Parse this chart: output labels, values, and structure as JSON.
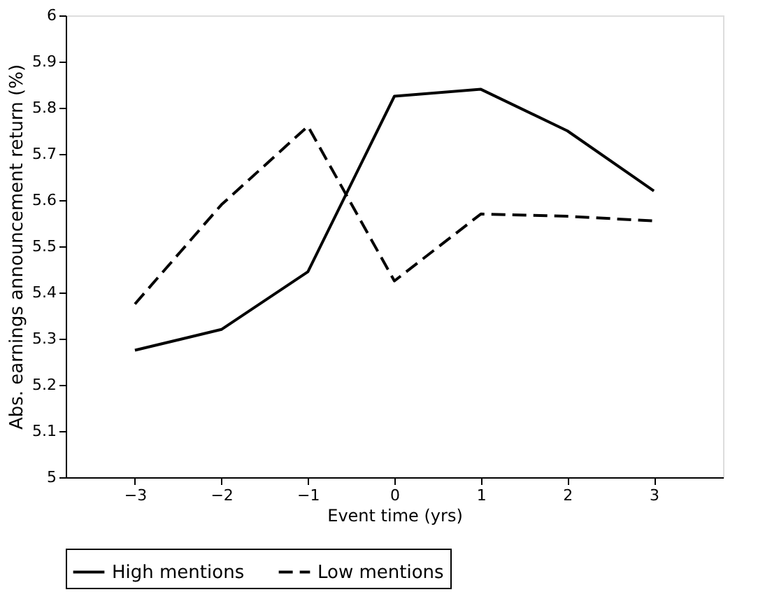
{
  "chart_data": {
    "type": "line",
    "xlabel": "Event time (yrs)",
    "ylabel": "Abs. earnings announcement return (%)",
    "x": [
      -3,
      -2,
      -1,
      0,
      1,
      2,
      3
    ],
    "series": [
      {
        "name": "High mentions",
        "color": "#000000",
        "line_style": "solid",
        "values": [
          5.275,
          5.32,
          5.445,
          5.825,
          5.84,
          5.75,
          5.62
        ]
      },
      {
        "name": "Low mentions",
        "color": "#000000",
        "line_style": "dashed",
        "values": [
          5.375,
          5.59,
          5.76,
          5.425,
          5.57,
          5.565,
          5.555
        ]
      }
    ],
    "xlim": [
      -3.8,
      3.8
    ],
    "xticks": [
      -3,
      -2,
      -1,
      0,
      1,
      2,
      3
    ],
    "ylim": [
      5,
      6
    ],
    "yticks": [
      5,
      5.1,
      5.2,
      5.3,
      5.4,
      5.5,
      5.6,
      5.7,
      5.8,
      5.9,
      6
    ],
    "grid": false,
    "legend": "bottom",
    "marker": "none"
  }
}
